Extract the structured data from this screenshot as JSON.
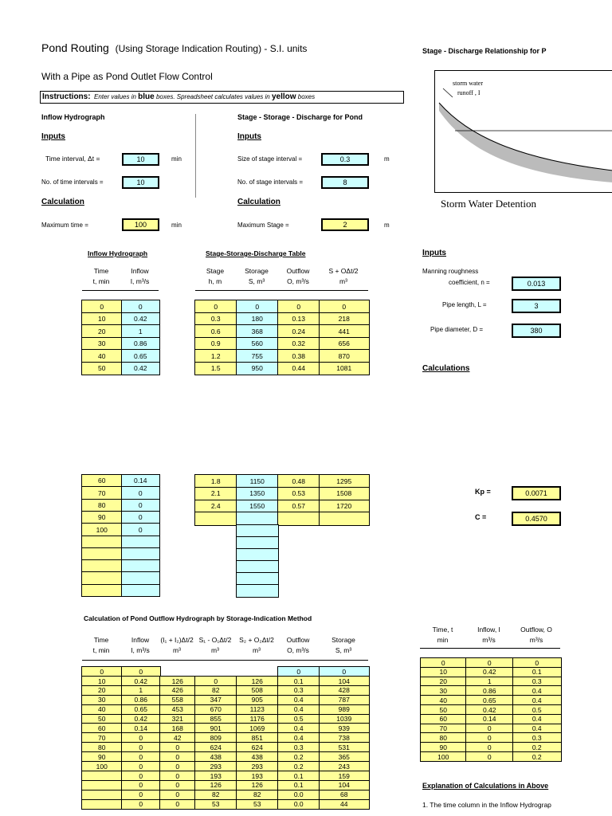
{
  "title": "Pond Routing",
  "title_sub": "(Using Storage Indication Routing) - S.I. units",
  "subtitle": "With a Pipe as Pond Outlet Flow Control",
  "instructions": {
    "label": "Instructions:",
    "t1": "Enter values in",
    "blue": "blue",
    "t2": "boxes.  Spreadsheet calculates values in",
    "yellow": "yellow",
    "t3": "boxes"
  },
  "right_heading": "Stage - Discharge Relationship for P",
  "figure": {
    "runoff_label": "storm water runoff , I",
    "caption": "Storm Water Detention"
  },
  "inflow_section": {
    "title": "Inflow Hydrograph",
    "inputs": "Inputs",
    "time_interval_label": "Time interval, Δt =",
    "time_interval": "10",
    "time_unit": "min",
    "num_intervals_label": "No. of time intervals =",
    "num_intervals": "10",
    "calculation": "Calculation",
    "max_time_label": "Maximum time  =",
    "max_time": "100",
    "max_time_unit": "min"
  },
  "stage_section": {
    "title": "Stage - Storage - Discharge for Pond",
    "inputs": "Inputs",
    "stage_interval_label": "Size of stage interval =",
    "stage_interval": "0.3",
    "stage_unit": "m",
    "num_stage_label": "No. of stage intervals =",
    "num_stage": "8",
    "calculation": "Calculation",
    "max_stage_label": "Maximum Stage  =",
    "max_stage": "2",
    "max_stage_unit": "m"
  },
  "inflow_table": {
    "title": "Inflow Hydrograph",
    "headers": [
      [
        "Time",
        "t, min"
      ],
      [
        "Inflow",
        "I, m³/s"
      ]
    ],
    "block1": [
      [
        "0",
        "0"
      ],
      [
        "10",
        "0.42"
      ],
      [
        "20",
        "1"
      ],
      [
        "30",
        "0.86"
      ],
      [
        "40",
        "0.65"
      ],
      [
        "50",
        "0.42"
      ]
    ],
    "block2": [
      [
        "60",
        "0.14"
      ],
      [
        "70",
        "0"
      ],
      [
        "80",
        "0"
      ],
      [
        "90",
        "0"
      ],
      [
        "100",
        "0"
      ],
      [
        "",
        ""
      ],
      [
        "",
        ""
      ],
      [
        "",
        ""
      ],
      [
        "",
        ""
      ],
      [
        "",
        ""
      ]
    ]
  },
  "ssd_table": {
    "title": "Stage-Storage-Discharge Table",
    "headers": [
      [
        "Stage",
        "h, m"
      ],
      [
        "Storage",
        "S, m³"
      ],
      [
        "Outflow",
        "O, m³/s"
      ],
      [
        "S + OΔt/2",
        "m³"
      ]
    ],
    "block1": [
      [
        "0",
        "0",
        "0",
        "0"
      ],
      [
        "0.3",
        "180",
        "0.13",
        "218"
      ],
      [
        "0.6",
        "368",
        "0.24",
        "441"
      ],
      [
        "0.9",
        "560",
        "0.32",
        "656"
      ],
      [
        "1.2",
        "755",
        "0.38",
        "870"
      ],
      [
        "1.5",
        "950",
        "0.44",
        "1081"
      ]
    ],
    "block2": [
      [
        "1.8",
        "1150",
        "0.48",
        "1295"
      ],
      [
        "2.1",
        "1350",
        "0.53",
        "1508"
      ],
      [
        "2.4",
        "1550",
        "0.57",
        "1720"
      ],
      [
        "",
        "",
        "",
        ""
      ]
    ]
  },
  "pipe": {
    "inputs": "Inputs",
    "manning_label1": "Manning roughness",
    "manning_label2": "coefficient, n =",
    "manning": "0.013",
    "length_label": "Pipe length, L =",
    "length": "3",
    "diameter_label": "Pipe diameter, D =",
    "diameter": "380",
    "calculations": "Calculations",
    "kp_label": "Kp =",
    "kp": "0.0071",
    "c_label": "C =",
    "c": "0.4570"
  },
  "routing_table": {
    "title": "Calculation of Pond Outflow Hydrograph by Storage-Indication Method",
    "headers": [
      [
        "Time",
        "t, min"
      ],
      [
        "Inflow",
        "I, m³/s"
      ],
      [
        "(I₁ + I₂)Δt/2",
        "m³"
      ],
      [
        "S₁ - O₁Δt/2",
        "m³"
      ],
      [
        "S₂ + O₂Δt/2",
        "m³"
      ],
      [
        "Outflow",
        "O, m³/s"
      ],
      [
        "Storage",
        "S, m³"
      ]
    ],
    "rows": [
      [
        "0",
        "0",
        "",
        "",
        "",
        "0",
        "0"
      ],
      [
        "10",
        "0.42",
        "126",
        "0",
        "126",
        "0.1",
        "104"
      ],
      [
        "20",
        "1",
        "426",
        "82",
        "508",
        "0.3",
        "428"
      ],
      [
        "30",
        "0.86",
        "558",
        "347",
        "905",
        "0.4",
        "787"
      ],
      [
        "40",
        "0.65",
        "453",
        "670",
        "1123",
        "0.4",
        "989"
      ],
      [
        "50",
        "0.42",
        "321",
        "855",
        "1176",
        "0.5",
        "1039"
      ],
      [
        "60",
        "0.14",
        "168",
        "901",
        "1069",
        "0.4",
        "939"
      ],
      [
        "70",
        "0",
        "42",
        "809",
        "851",
        "0.4",
        "738"
      ],
      [
        "80",
        "0",
        "0",
        "624",
        "624",
        "0.3",
        "531"
      ],
      [
        "90",
        "0",
        "0",
        "438",
        "438",
        "0.2",
        "365"
      ],
      [
        "100",
        "0",
        "0",
        "293",
        "293",
        "0.2",
        "243"
      ],
      [
        "",
        "0",
        "0",
        "193",
        "193",
        "0.1",
        "159"
      ],
      [
        "",
        "0",
        "0",
        "126",
        "126",
        "0.1",
        "104"
      ],
      [
        "",
        "0",
        "0",
        "82",
        "82",
        "0.0",
        "68"
      ],
      [
        "",
        "0",
        "0",
        "53",
        "53",
        "0.0",
        "44"
      ]
    ]
  },
  "summary_table": {
    "headers": [
      [
        "Time, t",
        "min"
      ],
      [
        "Inflow, I",
        "m³/s"
      ],
      [
        "Outflow, O",
        "m³/s"
      ]
    ],
    "rows": [
      [
        "0",
        "0",
        "0"
      ],
      [
        "10",
        "0.42",
        "0.1"
      ],
      [
        "20",
        "1",
        "0.3"
      ],
      [
        "30",
        "0.86",
        "0.4"
      ],
      [
        "40",
        "0.65",
        "0.4"
      ],
      [
        "50",
        "0.42",
        "0.5"
      ],
      [
        "60",
        "0.14",
        "0.4"
      ],
      [
        "70",
        "0",
        "0.4"
      ],
      [
        "80",
        "0",
        "0.3"
      ],
      [
        "90",
        "0",
        "0.2"
      ],
      [
        "100",
        "0",
        "0.2"
      ]
    ]
  },
  "explanation": {
    "title": "Explanation of Calculations in Above",
    "item1": "1.  The time column in the Inflow Hydrograp"
  },
  "colors": {
    "input_blue": "#ccffff",
    "calc_yellow": "#ffff99"
  }
}
